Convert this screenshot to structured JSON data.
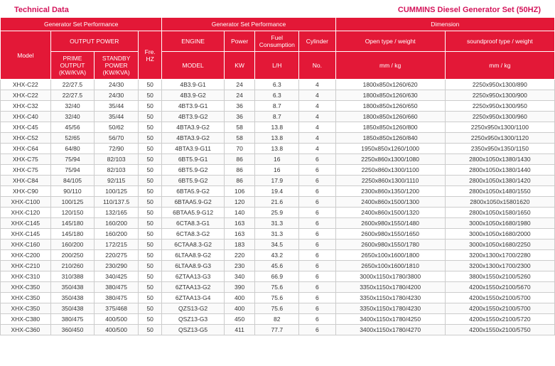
{
  "header": {
    "left": "Technical Data",
    "right": "CUMMINS Diesel Generator Set (50HZ)"
  },
  "thead": {
    "group1": "Generator Set Performance",
    "group2": "Generator Set Performance",
    "group3": "Dimension",
    "output_power": "OUTPUT  POWER",
    "model": "Model",
    "fre": "Fre. HZ",
    "engine": "ENGINE",
    "power": "Power",
    "fuel": "Fuel Consumption",
    "cylinder": "Cylinder",
    "open": "Open type  / weight",
    "sound": "soundproof type / weight",
    "prime": "PRIME OUTPUT (KW/KVA)",
    "standby": "STANDBY POWER (KW/KVA)",
    "engine_model": "MODEL",
    "kw": "KW",
    "lh": "L/H",
    "no": "No.",
    "mmkg1": "mm  /  kg",
    "mmkg2": "mm / kg"
  },
  "rows": [
    {
      "model": "XHX-C22",
      "prime": "22/27.5",
      "standby": "24/30",
      "fre": "50",
      "engine": "4B3.9-G1",
      "kw": "24",
      "lh": "6.3",
      "cyl": "4",
      "open": "1800x850x1260/620",
      "sound": "2250x950x1300/890"
    },
    {
      "model": "XHX-C22",
      "prime": "22/27.5",
      "standby": "24/30",
      "fre": "50",
      "engine": "4B3.9-G2",
      "kw": "24",
      "lh": "6.3",
      "cyl": "4",
      "open": "1800x850x1260/630",
      "sound": "2250x950x1300/900"
    },
    {
      "model": "XHX-C32",
      "prime": "32/40",
      "standby": "35/44",
      "fre": "50",
      "engine": "4BT3.9-G1",
      "kw": "36",
      "lh": "8.7",
      "cyl": "4",
      "open": "1800x850x1260/650",
      "sound": "2250x950x1300/950"
    },
    {
      "model": "XHX-C40",
      "prime": "32/40",
      "standby": "35/44",
      "fre": "50",
      "engine": "4BT3.9-G2",
      "kw": "36",
      "lh": "8.7",
      "cyl": "4",
      "open": "1800x850x1260/660",
      "sound": "2250x950x1300/960"
    },
    {
      "model": "XHX-C45",
      "prime": "45/56",
      "standby": "50/62",
      "fre": "50",
      "engine": "4BTA3.9-G2",
      "kw": "58",
      "lh": "13.8",
      "cyl": "4",
      "open": "1850x850x1260/800",
      "sound": "2250x950x1300/1100"
    },
    {
      "model": "XHX-C52",
      "prime": "52/65",
      "standby": "56/70",
      "fre": "50",
      "engine": "4BTA3.9-G2",
      "kw": "58",
      "lh": "13.8",
      "cyl": "4",
      "open": "1850x850x1260/840",
      "sound": "2250x950x1300/1120"
    },
    {
      "model": "XHX-C64",
      "prime": "64/80",
      "standby": "72/90",
      "fre": "50",
      "engine": "4BTA3.9-G11",
      "kw": "70",
      "lh": "13.8",
      "cyl": "4",
      "open": "1950x850x1260/1000",
      "sound": "2350x950x1350/1150"
    },
    {
      "model": "XHX-C75",
      "prime": "75/94",
      "standby": "82/103",
      "fre": "50",
      "engine": "6BT5.9-G1",
      "kw": "86",
      "lh": "16",
      "cyl": "6",
      "open": "2250x860x1300/1080",
      "sound": "2800x1050x1380/1430"
    },
    {
      "model": "XHX-C75",
      "prime": "75/94",
      "standby": "82/103",
      "fre": "50",
      "engine": "6BT5.9-G2",
      "kw": "86",
      "lh": "16",
      "cyl": "6",
      "open": "2250x860x1300/1100",
      "sound": "2800x1050x1380/1440"
    },
    {
      "model": "XHX-C84",
      "prime": "84/105",
      "standby": "92/115",
      "fre": "50",
      "engine": "6BT5.9-G2",
      "kw": "86",
      "lh": "17.9",
      "cyl": "6",
      "open": "2250x860x1300/1110",
      "sound": "2800x1050x1380/1420"
    },
    {
      "model": "XHX-C90",
      "prime": "90/110",
      "standby": "100/125",
      "fre": "50",
      "engine": "6BTA5.9-G2",
      "kw": "106",
      "lh": "19.4",
      "cyl": "6",
      "open": "2300x860x1350/1200",
      "sound": "2800x1050x1480/1550"
    },
    {
      "model": "XHX-C100",
      "prime": "100/125",
      "standby": "110/137.5",
      "fre": "50",
      "engine": "6BTAA5.9-G2",
      "kw": "120",
      "lh": "21.6",
      "cyl": "6",
      "open": "2400x860x1500/1300",
      "sound": "2800x1050x15801620"
    },
    {
      "model": "XHX-C120",
      "prime": "120/150",
      "standby": "132/165",
      "fre": "50",
      "engine": "6BTAA5.9-G12",
      "kw": "140",
      "lh": "25.9",
      "cyl": "6",
      "open": "2400x860x1500/1320",
      "sound": "2800x1050x1580/1650"
    },
    {
      "model": "XHX-C145",
      "prime": "145/180",
      "standby": "160/200",
      "fre": "50",
      "engine": "6CTA8.3-G1",
      "kw": "163",
      "lh": "31.3",
      "cyl": "6",
      "open": "2600x980x1550/1480",
      "sound": "3000x1050x1680/1980"
    },
    {
      "model": "XHX-C145",
      "prime": "145/180",
      "standby": "160/200",
      "fre": "50",
      "engine": "6CTA8.3-G2",
      "kw": "163",
      "lh": "31.3",
      "cyl": "6",
      "open": "2600x980x1550/1650",
      "sound": "3000x1050x1680/2000"
    },
    {
      "model": "XHX-C160",
      "prime": "160/200",
      "standby": "172/215",
      "fre": "50",
      "engine": "6CTAA8.3-G2",
      "kw": "183",
      "lh": "34.5",
      "cyl": "6",
      "open": "2600x980x1550/1780",
      "sound": "3000x1050x1680/2250"
    },
    {
      "model": "XHX-C200",
      "prime": "200/250",
      "standby": "220/275",
      "fre": "50",
      "engine": "6LTAA8.9-G2",
      "kw": "220",
      "lh": "43.2",
      "cyl": "6",
      "open": "2650x100x1600/1800",
      "sound": "3200x1300x1700/2280"
    },
    {
      "model": "XHX-C210",
      "prime": "210/260",
      "standby": "230/290",
      "fre": "50",
      "engine": "6LTAA8.9-G3",
      "kw": "230",
      "lh": "45.6",
      "cyl": "6",
      "open": "2650x100x1600/1810",
      "sound": "3200x1300x1700/2300"
    },
    {
      "model": "XHX-C310",
      "prime": "310/388",
      "standby": "340/425",
      "fre": "50",
      "engine": "6ZTAA13-G3",
      "kw": "340",
      "lh": "66.9",
      "cyl": "6",
      "open": "3000x1150x1780/3800",
      "sound": "3800x1550x2100/5260"
    },
    {
      "model": "XHX-C350",
      "prime": "350/438",
      "standby": "380/475",
      "fre": "50",
      "engine": "6ZTAA13-G2",
      "kw": "390",
      "lh": "75.6",
      "cyl": "6",
      "open": "3350x1150x1780/4200",
      "sound": "4200x1550x2100/5670"
    },
    {
      "model": "XHX-C350",
      "prime": "350/438",
      "standby": "380/475",
      "fre": "50",
      "engine": "6ZTAA13-G4",
      "kw": "400",
      "lh": "75.6",
      "cyl": "6",
      "open": "3350x1150x1780/4230",
      "sound": "4200x1550x2100/5700"
    },
    {
      "model": "XHX-C350",
      "prime": "350/438",
      "standby": "375/468",
      "fre": "50",
      "engine": "QZS13-G2",
      "kw": "400",
      "lh": "75.6",
      "cyl": "6",
      "open": "3350x1150x1780/4230",
      "sound": "4200x1550x2100/5700"
    },
    {
      "model": "XHX-C380",
      "prime": "380/475",
      "standby": "400/500",
      "fre": "50",
      "engine": "QSZ13-G3",
      "kw": "450",
      "lh": "82",
      "cyl": "6",
      "open": "3400x1150x1780/4250",
      "sound": "4200x1550x2100/5720"
    },
    {
      "model": "XHX-C360",
      "prime": "360/450",
      "standby": "400/500",
      "fre": "50",
      "engine": "QSZ13-G5",
      "kw": "411",
      "lh": "77.7",
      "cyl": "6",
      "open": "3400x1150x1780/4270",
      "sound": "4200x1550x2100/5750"
    }
  ],
  "colors": {
    "brand": "#d4145a",
    "thead_bg": "#e31837"
  }
}
